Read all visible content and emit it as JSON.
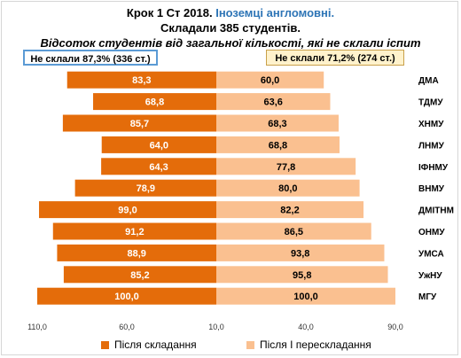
{
  "title": {
    "line1_prefix": "Крок 1 Ст 2018.",
    "line1_highlight": "Іноземці англомовні.",
    "line2": "Складали 385 студентів.",
    "line3": "Відсоток студентів від загальної кількості, які не склали іспит"
  },
  "summary": {
    "left": "Не склали 87,3% (336 ст.)",
    "right": "Не склали  71,2% (274 ст.)"
  },
  "colors": {
    "before": "#e46c0a",
    "after": "#fac090"
  },
  "legend": {
    "before": "Після складання",
    "after": "Після І перескладання"
  },
  "chart_data": {
    "type": "bar",
    "orientation": "horizontal-diverging",
    "categories": [
      "ДМА",
      "ТДМУ",
      "ХНМУ",
      "ЛНМУ",
      "ІФНМУ",
      "ВНМУ",
      "ДМІТНМ",
      "ОНМУ",
      "УМСА",
      "УжНУ",
      "МГУ"
    ],
    "series": [
      {
        "name": "Після складання",
        "values": [
          83.3,
          68.8,
          85.7,
          64.0,
          64.3,
          78.9,
          99.0,
          91.2,
          88.9,
          85.2,
          100.0
        ]
      },
      {
        "name": "Після І перескладання",
        "values": [
          60.0,
          63.6,
          68.3,
          68.8,
          77.8,
          80.0,
          82.2,
          86.5,
          93.8,
          95.8,
          100.0
        ]
      }
    ],
    "labels": {
      "before": [
        "83,3",
        "68,8",
        "85,7",
        "64,0",
        "64,3",
        "78,9",
        "99,0",
        "91,2",
        "88,9",
        "85,2",
        "100,0"
      ],
      "after": [
        "60,0",
        "63,6",
        "68,3",
        "68,8",
        "77,8",
        "80,0",
        "82,2",
        "86,5",
        "93,8",
        "95,8",
        "100,0"
      ]
    },
    "xlim": [
      -110,
      110
    ],
    "x_ticks": [
      {
        "value": -110,
        "label": "110,0"
      },
      {
        "value": -60,
        "label": "60,0"
      },
      {
        "value": -10,
        "label": "10,0"
      },
      {
        "value": 40,
        "label": "40,0"
      },
      {
        "value": 90,
        "label": "90,0"
      }
    ],
    "grid": false,
    "legend_position": "bottom"
  }
}
